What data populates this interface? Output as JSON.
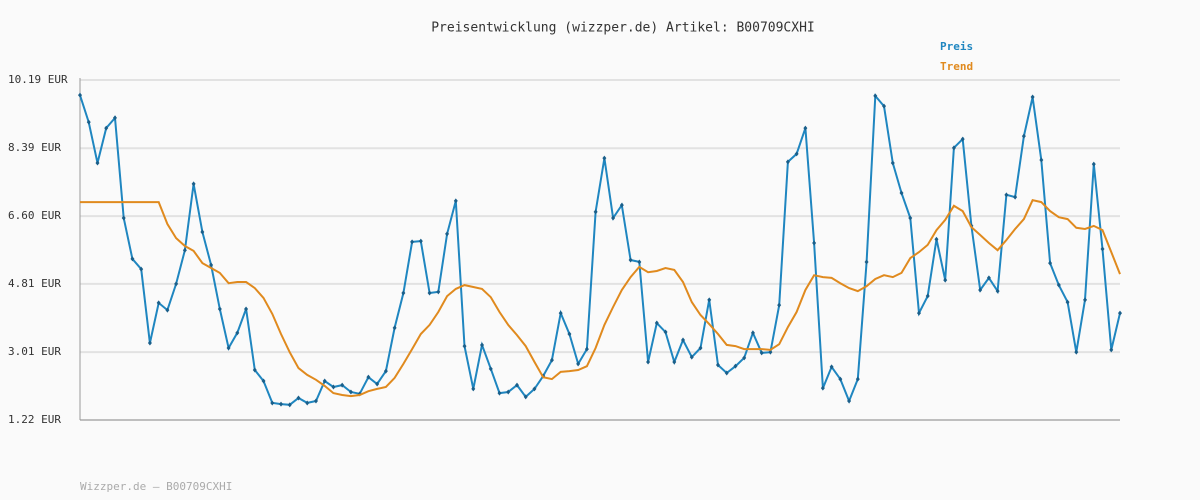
{
  "chart_data": {
    "type": "line",
    "title": "Preisentwicklung (wizzper.de) Artikel: B00709CXHI",
    "footer": "Wizzper.de – B00709CXHI",
    "ylim": [
      1.22,
      10.19
    ],
    "yticks": [
      {
        "value": 1.22,
        "label": "1.22 EUR"
      },
      {
        "value": 3.01,
        "label": "3.01 EUR"
      },
      {
        "value": 4.81,
        "label": "4.81 EUR"
      },
      {
        "value": 6.6,
        "label": "6.60 EUR"
      },
      {
        "value": 8.39,
        "label": "8.39 EUR"
      },
      {
        "value": 10.19,
        "label": "10.19 EUR"
      }
    ],
    "grid": true,
    "legend": "top-right",
    "series": [
      {
        "name": "Preis",
        "color": "#1f86c0",
        "markers": true,
        "values": [
          9.79,
          9.08,
          8.0,
          8.92,
          9.19,
          6.55,
          5.47,
          5.2,
          3.25,
          4.31,
          4.12,
          4.81,
          5.7,
          7.45,
          6.18,
          5.31,
          4.15,
          3.12,
          3.52,
          4.15,
          2.54,
          2.25,
          1.67,
          1.64,
          1.62,
          1.8,
          1.67,
          1.72,
          2.25,
          2.09,
          2.14,
          1.96,
          1.91,
          2.35,
          2.17,
          2.51,
          3.65,
          4.57,
          5.92,
          5.94,
          4.57,
          4.6,
          6.13,
          7.0,
          3.17,
          2.04,
          3.2,
          2.57,
          1.93,
          1.96,
          2.14,
          1.83,
          2.04,
          2.38,
          2.8,
          4.04,
          3.49,
          2.7,
          3.09,
          6.71,
          8.13,
          6.55,
          6.89,
          5.44,
          5.39,
          2.75,
          3.78,
          3.54,
          2.75,
          3.33,
          2.88,
          3.12,
          4.39,
          2.67,
          2.46,
          2.64,
          2.86,
          3.52,
          2.99,
          3.01,
          4.25,
          8.03,
          8.24,
          8.92,
          5.89,
          2.06,
          2.62,
          2.3,
          1.72,
          2.3,
          5.39,
          9.77,
          9.5,
          8.0,
          7.21,
          6.55,
          4.04,
          4.49,
          5.99,
          4.91,
          8.4,
          8.63,
          6.34,
          4.65,
          4.97,
          4.62,
          7.16,
          7.1,
          8.71,
          9.74,
          8.08,
          5.36,
          4.78,
          4.33,
          3.01,
          4.39,
          7.97,
          5.73,
          3.07,
          4.04
        ]
      },
      {
        "name": "Trend",
        "color": "#e08a1e",
        "markers": false,
        "values": [
          6.97,
          6.97,
          6.97,
          6.97,
          6.97,
          6.97,
          6.97,
          6.97,
          6.97,
          6.97,
          6.39,
          6.02,
          5.81,
          5.68,
          5.36,
          5.23,
          5.1,
          4.83,
          4.86,
          4.86,
          4.7,
          4.44,
          4.02,
          3.49,
          3.01,
          2.59,
          2.41,
          2.28,
          2.12,
          1.93,
          1.88,
          1.85,
          1.88,
          1.98,
          2.04,
          2.09,
          2.33,
          2.7,
          3.09,
          3.49,
          3.73,
          4.07,
          4.49,
          4.68,
          4.78,
          4.73,
          4.68,
          4.46,
          4.07,
          3.73,
          3.46,
          3.17,
          2.75,
          2.35,
          2.3,
          2.49,
          2.51,
          2.54,
          2.64,
          3.12,
          3.73,
          4.2,
          4.65,
          4.99,
          5.26,
          5.12,
          5.15,
          5.23,
          5.18,
          4.86,
          4.33,
          3.99,
          3.75,
          3.49,
          3.2,
          3.17,
          3.09,
          3.09,
          3.09,
          3.07,
          3.22,
          3.67,
          4.07,
          4.65,
          5.04,
          4.99,
          4.97,
          4.83,
          4.7,
          4.62,
          4.75,
          4.94,
          5.04,
          4.99,
          5.1,
          5.49,
          5.65,
          5.84,
          6.23,
          6.5,
          6.87,
          6.73,
          6.31,
          6.1,
          5.89,
          5.7,
          5.97,
          6.26,
          6.52,
          7.02,
          6.97,
          6.73,
          6.57,
          6.52,
          6.29,
          6.26,
          6.34,
          6.23,
          5.65,
          5.07
        ]
      }
    ]
  }
}
